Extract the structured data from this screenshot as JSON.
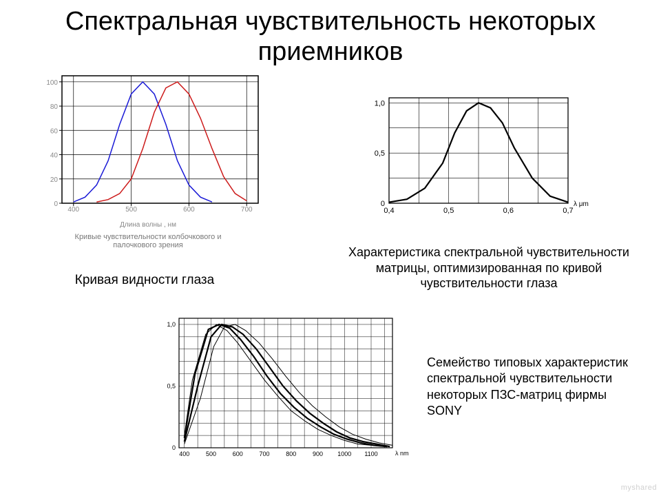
{
  "title": "Спектральная чувствительность некоторых приемников",
  "chart1": {
    "type": "line",
    "xlabel": "Длина волны , нм",
    "caption_under_plot": "Кривые чувствительности колбочкового и\nпалочкового зрения",
    "main_caption": "Кривая видности глаза",
    "xlim": [
      380,
      720
    ],
    "ylim": [
      0,
      105
    ],
    "xticks": [
      400,
      500,
      600,
      700
    ],
    "yticks": [
      0,
      20,
      40,
      60,
      80,
      100
    ],
    "grid_color": "#000000",
    "axis_color": "#000000",
    "background": "#ffffff",
    "label_color": "#888888",
    "label_fontsize": 10,
    "tick_fontsize": 10,
    "line_width": 1.5,
    "series": [
      {
        "color": "#1a1ad6",
        "x": [
          400,
          420,
          440,
          460,
          480,
          500,
          520,
          540,
          560,
          580,
          600,
          620,
          640
        ],
        "y": [
          1,
          5,
          15,
          35,
          65,
          90,
          100,
          90,
          65,
          35,
          15,
          5,
          1
        ]
      },
      {
        "color": "#cc1a1a",
        "x": [
          440,
          460,
          480,
          500,
          520,
          540,
          560,
          580,
          600,
          620,
          640,
          660,
          680,
          700
        ],
        "y": [
          1,
          3,
          8,
          20,
          45,
          75,
          95,
          100,
          90,
          70,
          45,
          22,
          8,
          2
        ]
      }
    ]
  },
  "chart2": {
    "type": "line",
    "main_caption": "Характеристика спектральной чувствительности матрицы, оптимизированная по кривой чувствительности глаза",
    "xlim": [
      0.4,
      0.7
    ],
    "ylim": [
      0,
      1.05
    ],
    "xticks": [
      "0,4",
      "0,5",
      "0,6",
      "0,7"
    ],
    "yticks": [
      "0",
      "0,5",
      "1,0"
    ],
    "x_annot": "λ  μm",
    "grid_color": "#000000",
    "axis_color": "#000000",
    "line_color": "#000000",
    "line_width": 2.2,
    "tick_fontsize": 11,
    "series": {
      "x": [
        0.4,
        0.43,
        0.46,
        0.49,
        0.51,
        0.53,
        0.55,
        0.57,
        0.59,
        0.61,
        0.64,
        0.67,
        0.7
      ],
      "y": [
        0.01,
        0.04,
        0.15,
        0.4,
        0.7,
        0.92,
        1.0,
        0.95,
        0.8,
        0.55,
        0.25,
        0.07,
        0.01
      ]
    }
  },
  "chart3": {
    "type": "line",
    "main_caption": "Семейство типовых характеристик спектральной чувствительности некоторых ПЗС-матриц фирмы SONY",
    "xlim": [
      380,
      1180
    ],
    "ylim": [
      0,
      1.05
    ],
    "xticks": [
      400,
      500,
      600,
      700,
      800,
      900,
      1000,
      1100
    ],
    "yticks_major": [
      "0",
      "0,5",
      "1,0"
    ],
    "x_annot": "λ nm",
    "grid_color": "#000000",
    "line_width_thin": 1,
    "line_width_thick": 2.2,
    "tick_fontsize": 9,
    "series": [
      {
        "w": 1,
        "x": [
          400,
          430,
          480,
          520,
          560,
          600,
          650,
          700,
          750,
          800,
          850,
          900,
          950,
          1000,
          1050,
          1100,
          1150
        ],
        "y": [
          0.1,
          0.55,
          0.92,
          1.0,
          0.95,
          0.85,
          0.7,
          0.55,
          0.42,
          0.3,
          0.22,
          0.15,
          0.1,
          0.06,
          0.03,
          0.02,
          0.01
        ]
      },
      {
        "w": 2.2,
        "x": [
          400,
          440,
          490,
          530,
          570,
          610,
          660,
          710,
          760,
          810,
          860,
          910,
          960,
          1010,
          1060,
          1110,
          1160
        ],
        "y": [
          0.08,
          0.6,
          0.96,
          1.0,
          0.97,
          0.88,
          0.74,
          0.58,
          0.44,
          0.33,
          0.24,
          0.17,
          0.11,
          0.07,
          0.04,
          0.02,
          0.01
        ]
      },
      {
        "w": 2.2,
        "x": [
          400,
          450,
          500,
          540,
          580,
          620,
          670,
          720,
          770,
          820,
          870,
          920,
          970,
          1020,
          1070,
          1120,
          1170
        ],
        "y": [
          0.05,
          0.5,
          0.9,
          1.0,
          0.98,
          0.92,
          0.8,
          0.65,
          0.5,
          0.38,
          0.28,
          0.2,
          0.13,
          0.08,
          0.05,
          0.03,
          0.01
        ]
      },
      {
        "w": 1,
        "x": [
          400,
          460,
          510,
          550,
          590,
          630,
          680,
          730,
          780,
          830,
          880,
          930,
          980,
          1030,
          1080,
          1130,
          1180
        ],
        "y": [
          0.03,
          0.4,
          0.82,
          0.98,
          1.0,
          0.95,
          0.85,
          0.72,
          0.58,
          0.45,
          0.34,
          0.25,
          0.17,
          0.11,
          0.07,
          0.04,
          0.02
        ]
      }
    ]
  },
  "watermark": "myshared"
}
